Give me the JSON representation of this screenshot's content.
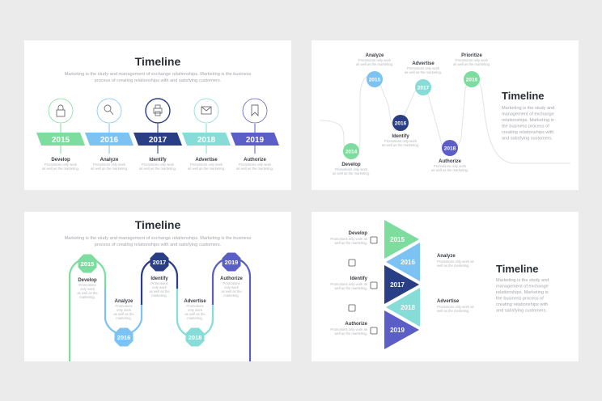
{
  "colors": {
    "green": "#7ddd9e",
    "blue": "#7cc3f3",
    "navy": "#2a3e86",
    "teal": "#86dcd6",
    "purple": "#5b5ec6",
    "line": "#dcdcdc"
  },
  "title": "Timeline",
  "subtitle_line1": "Marketing is the study and management of exchange relationships. Marketing is the business",
  "subtitle_line2": "process of creating relationships with and satisfying customers.",
  "side_text": [
    "Marketing is the study and",
    "management of exchange",
    "relationships. Marketing is",
    "the business process of",
    "creating relationships with",
    "and satisfying customers."
  ],
  "desc_line1": "Promotions only work",
  "desc_line2": "as well as the marketing.",
  "slide1": {
    "steps": [
      {
        "year": "2015",
        "label": "Develop",
        "icon": "lock-icon"
      },
      {
        "year": "2016",
        "label": "Analyze",
        "icon": "magnifier-icon"
      },
      {
        "year": "2017",
        "label": "Identify",
        "icon": "printer-icon"
      },
      {
        "year": "2018",
        "label": "Advertise",
        "icon": "envelope-icon"
      },
      {
        "year": "2019",
        "label": "Authorize",
        "icon": "bookmark-icon"
      }
    ]
  },
  "slide2": {
    "steps": [
      {
        "year": "2014",
        "label": "Develop"
      },
      {
        "year": "2015",
        "label": "Analyze"
      },
      {
        "year": "2016",
        "label": "Identify"
      },
      {
        "year": "2017",
        "label": "Advertise"
      },
      {
        "year": "2018",
        "label": "Authorize"
      },
      {
        "year": "2019",
        "label": "Prioritize"
      }
    ]
  },
  "slide3": {
    "steps": [
      {
        "year": "2015",
        "label": "Develop"
      },
      {
        "year": "2016",
        "label": "Analyze"
      },
      {
        "year": "2017",
        "label": "Identify"
      },
      {
        "year": "2018",
        "label": "Advertise"
      },
      {
        "year": "2019",
        "label": "Authorize"
      }
    ],
    "desc": [
      "Promotions",
      "only work",
      "as well as the",
      "marketing."
    ]
  },
  "slide4": {
    "steps": [
      {
        "year": "2015",
        "label": "Develop",
        "icon": "store-icon"
      },
      {
        "year": "2016",
        "label": "Analyze",
        "icon": "battery-icon"
      },
      {
        "year": "2017",
        "label": "Identify",
        "icon": "camera-icon"
      },
      {
        "year": "2018",
        "label": "Advertise",
        "icon": "megaphone-icon"
      },
      {
        "year": "2019",
        "label": "Authorize",
        "icon": "headphones-icon"
      }
    ],
    "desc_line1": "Promotions only work as",
    "desc_line2": "well as the marketing."
  }
}
